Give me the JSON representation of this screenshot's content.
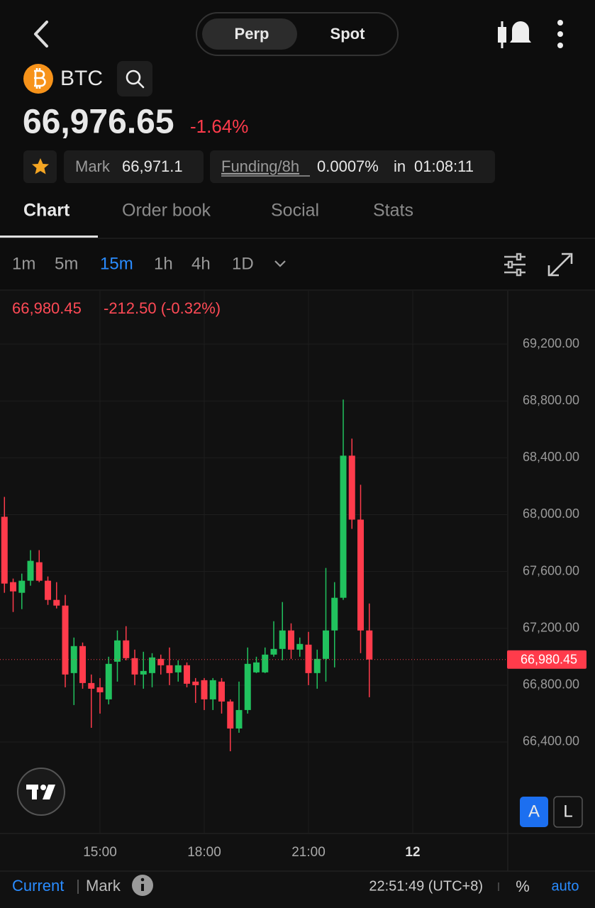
{
  "header": {
    "market_tabs": [
      "Perp",
      "Spot"
    ],
    "symbol": "BTC",
    "price": "66,976.65",
    "change": "-1.64%",
    "mark_label": "Mark",
    "mark_value": "66,971.1",
    "funding_label": "Funding/8h",
    "funding_value": "0.0007%",
    "funding_in": "in",
    "countdown": "01:08:11"
  },
  "tabs": [
    "Chart",
    "Order book",
    "Social",
    "Stats"
  ],
  "intervals": [
    "1m",
    "5m",
    "15m",
    "1h",
    "4h",
    "1D"
  ],
  "chart_data": {
    "type": "candlestick",
    "ohlc_price": "66,980.45",
    "ohlc_change": "-212.50 (-0.32%)",
    "up_color": "#21c25e",
    "down_color": "#ff3b4b",
    "x": [
      12.25,
      12.5,
      12.75,
      13,
      13.25,
      13.5,
      13.75,
      14,
      14.25,
      14.5,
      14.75,
      15,
      15.25,
      15.5,
      15.75,
      16,
      16.25,
      16.5,
      16.75,
      17,
      17.25,
      17.5,
      17.75,
      18,
      18.25,
      18.5,
      18.75,
      19,
      19.25,
      19.5,
      19.75,
      20,
      20.25,
      20.5,
      20.75,
      21,
      21.25,
      21.5,
      21.75,
      22,
      22.25,
      22.5,
      22.75
    ],
    "open": [
      67985,
      67525,
      67450,
      67535,
      67665,
      67535,
      67400,
      67360,
      66885,
      67075,
      66815,
      66785,
      66700,
      66965,
      67115,
      66990,
      66875,
      66885,
      66985,
      66940,
      66890,
      66940,
      66825,
      66835,
      66700,
      66825,
      66685,
      66495,
      66625,
      66890,
      66890,
      67015,
      67055,
      67185,
      67050,
      67085,
      66885,
      66985,
      67185,
      67415,
      68415,
      67965,
      67185
    ],
    "high": [
      68125,
      67550,
      67585,
      67750,
      67750,
      67565,
      67525,
      67435,
      67135,
      67100,
      66875,
      66850,
      67000,
      67185,
      67215,
      67050,
      67035,
      67025,
      67015,
      67065,
      66975,
      66960,
      66850,
      66850,
      66850,
      66850,
      66700,
      66825,
      67065,
      67000,
      67065,
      67250,
      67385,
      67235,
      67135,
      67175,
      67050,
      67625,
      67525,
      68810,
      68535,
      68210,
      67375
    ],
    "low": [
      67450,
      67315,
      67335,
      67500,
      67525,
      67365,
      67340,
      66785,
      66660,
      66775,
      66500,
      66600,
      66665,
      66825,
      66975,
      66800,
      66775,
      66785,
      66875,
      66800,
      66825,
      66785,
      66675,
      66625,
      66625,
      66600,
      66335,
      66465,
      66600,
      66885,
      66885,
      67000,
      66975,
      66985,
      67000,
      66800,
      66775,
      66825,
      66925,
      67400,
      67900,
      67025,
      66715
    ],
    "close": [
      67515,
      67460,
      67535,
      67675,
      67535,
      67400,
      67360,
      66875,
      67075,
      66815,
      66775,
      66750,
      66950,
      67115,
      66990,
      66875,
      66900,
      66995,
      66940,
      66885,
      66940,
      66810,
      66800,
      66700,
      66835,
      66685,
      66495,
      66625,
      66950,
      66960,
      67015,
      67055,
      67185,
      67050,
      67090,
      66885,
      66985,
      67185,
      67415,
      68415,
      67965,
      67185,
      66980.45
    ],
    "last_price": {
      "value": 66980.45,
      "label": "66,980.45"
    },
    "xlim": [
      12.122,
      26.735
    ],
    "ylim": [
      65756,
      69575
    ],
    "xticks": [
      {
        "value": 15,
        "label": "15:00"
      },
      {
        "value": 18,
        "label": "18:00"
      },
      {
        "value": 21,
        "label": "21:00"
      },
      {
        "value": 24,
        "label": "12"
      }
    ],
    "yticks": [
      {
        "value": 66400,
        "label": "66,400.00"
      },
      {
        "value": 66800,
        "label": "66,800.00"
      },
      {
        "value": 67200,
        "label": "67,200.00"
      },
      {
        "value": 67600,
        "label": "67,600.00"
      },
      {
        "value": 68000,
        "label": "68,000.00"
      },
      {
        "value": 68400,
        "label": "68,400.00"
      },
      {
        "value": 68800,
        "label": "68,800.00"
      },
      {
        "value": 69200,
        "label": "69,200.00"
      }
    ],
    "grid": true
  },
  "scale_buttons": [
    "A",
    "L"
  ],
  "footer": {
    "current": "Current",
    "mark": "Mark",
    "time": "22:51:49 (UTC+8)",
    "percent": "%",
    "auto": "auto"
  }
}
